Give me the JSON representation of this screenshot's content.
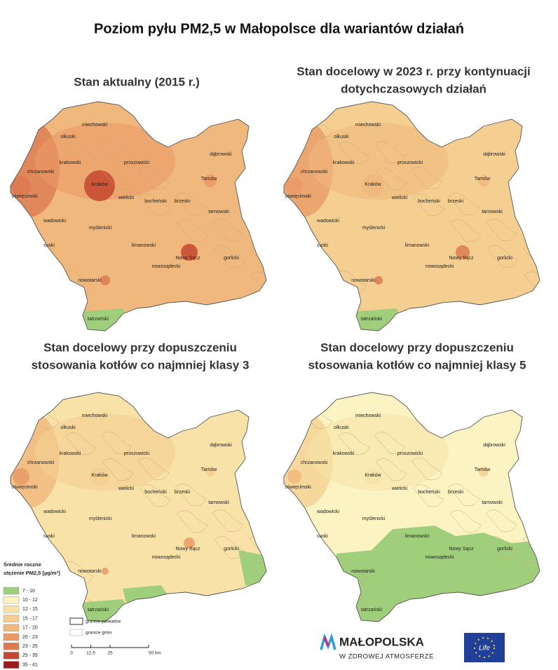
{
  "title": "Poziom pyłu PM2,5 w Małopolsce dla wariantów działań",
  "maps": [
    {
      "title_lines": [
        "Stan aktualny (2015 r.)"
      ]
    },
    {
      "title_lines": [
        "Stan docelowy w 2023 r. przy kontynuacji",
        "dotychczasowych działań"
      ]
    },
    {
      "title_lines": [
        "Stan docelowy przy dopuszczeniu",
        "stosowania kotłów co najmniej klasy 3"
      ]
    },
    {
      "title_lines": [
        "Stan docelowy przy dopuszczeniu",
        "stosowania kotłów co najmniej klasy 5"
      ]
    }
  ],
  "district_labels": [
    "miechowski",
    "olkuski",
    "dąbrowski",
    "proszowicki",
    "krakowski",
    "chrzanowski",
    "Tarnów",
    "Kraków",
    "oświęcimski",
    "wielicki",
    "bocheński",
    "brzeski",
    "tarnowski",
    "wadowicki",
    "myślenicki",
    "suski",
    "limanowski",
    "Nowy Sącz",
    "gorlicki",
    "nowosądecki",
    "nowotarski",
    "tatrzański"
  ],
  "legend": {
    "title_lines": [
      "Średnie roczne",
      "stężenie PM2,5 [µg/m³]"
    ],
    "items": [
      {
        "label": "7 - 10",
        "color": "#9fcf7a"
      },
      {
        "label": "10 - 12",
        "color": "#fbf3c2"
      },
      {
        "label": "12 - 15",
        "color": "#f8e2a8"
      },
      {
        "label": "15 - 17",
        "color": "#f5cf92"
      },
      {
        "label": "17 - 20",
        "color": "#f0b87c"
      },
      {
        "label": "20 - 23",
        "color": "#e99a66"
      },
      {
        "label": "23 - 25",
        "color": "#dc7a52"
      },
      {
        "label": "25 - 35",
        "color": "#c4472f"
      },
      {
        "label": "35 - 41",
        "color": "#9b1c1c"
      }
    ],
    "borders": [
      "granice powiatów",
      "granice gmin"
    ],
    "scale_labels": [
      "0",
      "12,5",
      "25",
      "50 km"
    ]
  },
  "logo": {
    "name": "MAŁOPOLSKA",
    "tagline": "W ZDROWEJ ATMOSFERZE",
    "eu": "Life"
  }
}
